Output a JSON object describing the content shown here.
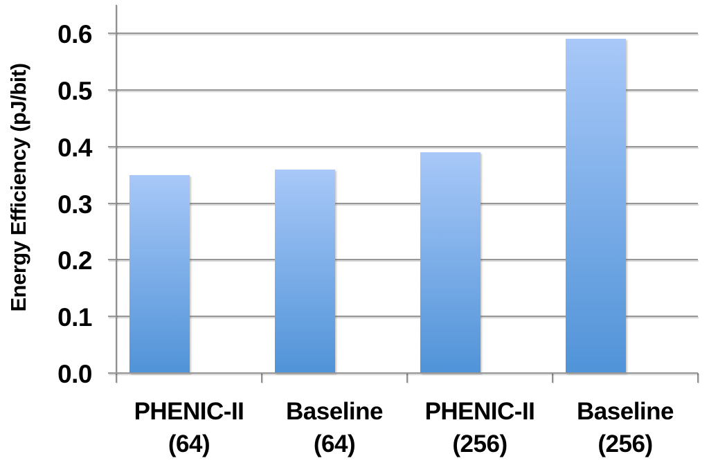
{
  "chart_data": {
    "type": "bar",
    "title": "",
    "ylabel": "Energy Efficiency (pJ/bit)",
    "xlabel": "",
    "categories": [
      "PHENIC-II (64)",
      "Baseline (64)",
      "PHENIC-II (256)",
      "Baseline (256)"
    ],
    "category_lines": [
      [
        "PHENIC-II",
        "(64)"
      ],
      [
        "Baseline",
        "(64)"
      ],
      [
        "PHENIC-II",
        "(256)"
      ],
      [
        "Baseline",
        "(256)"
      ]
    ],
    "values": [
      0.35,
      0.36,
      0.39,
      0.59
    ],
    "yticks": [
      0.0,
      0.1,
      0.2,
      0.3,
      0.4,
      0.5,
      0.6
    ],
    "ytick_labels": [
      "0.0",
      "0.1",
      "0.2",
      "0.3",
      "0.4",
      "0.5",
      "0.6"
    ],
    "ylim": [
      0,
      0.65
    ],
    "grid": true,
    "legend": "none",
    "colors": {
      "bar_gradient_top": "#a8c8f8",
      "bar_gradient_bottom": "#5093d8",
      "gridline": "#969696",
      "axis": "#8f8f8f",
      "text": "#000000",
      "background": "#ffffff"
    }
  }
}
